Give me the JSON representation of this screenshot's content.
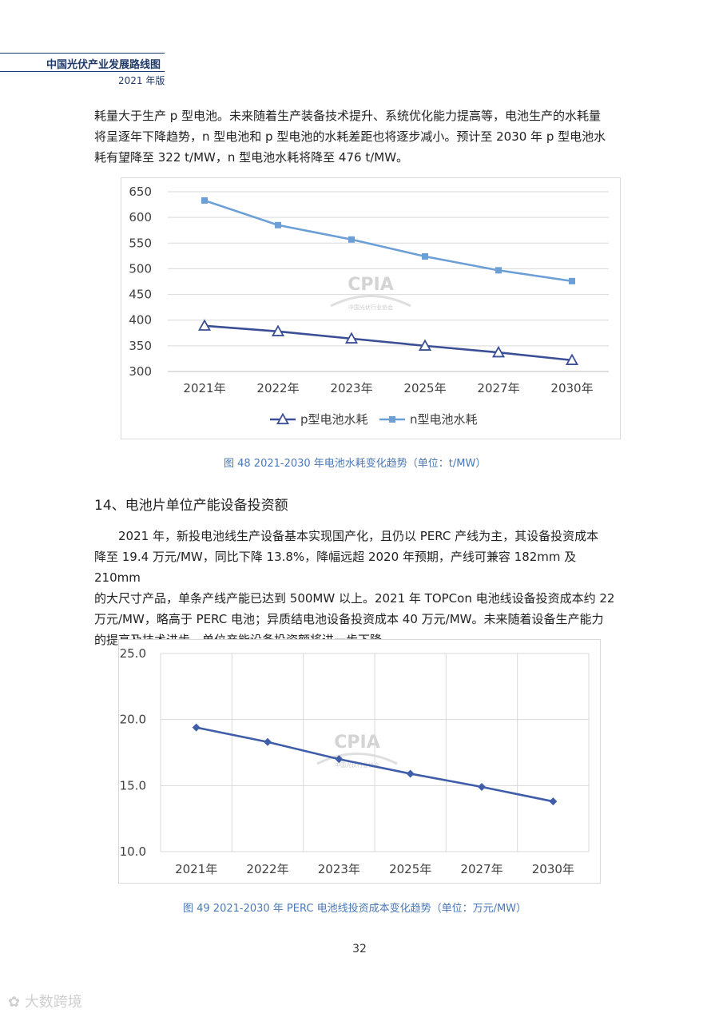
{
  "header": {
    "title": "中国光伏产业发展路线图",
    "subtitle": "2021 年版"
  },
  "paragraph1": [
    "耗量大于生产 p 型电池。未来随着生产装备技术提升、系统优化能力提高等，电池生产的水耗量",
    "将呈逐年下降趋势，n 型电池和 p 型电池的水耗差距也将逐步减小。预计至 2030 年 p 型电池水",
    "耗有望降至 322 t/MW，n 型电池水耗将降至 476 t/MW。"
  ],
  "figure48": {
    "caption": "图 48    2021-2030 年电池水耗变化趋势（单位：t/MW）",
    "watermark_text": "CPIA",
    "watermark_sub": "中国光伏行业协会"
  },
  "section14": {
    "heading": "14、电池片单位产能设备投资额",
    "paragraph": [
      "2021 年，新投电池线生产设备基本实现国产化，且仍以 PERC 产线为主，其设备投资成本",
      "降至 19.4 万元/MW，同比下降 13.8%，降幅远超 2020 年预期，产线可兼容 182mm 及 210mm",
      "的大尺寸产品，单条产线产能已达到 500MW 以上。2021 年 TOPCon 电池线设备投资成本约 22",
      "万元/MW，略高于 PERC 电池；异质结电池设备投资成本 40 万元/MW。未来随着设备生产能力",
      "的提高及技术进步，单位产能设备投资额将进一步下降。"
    ]
  },
  "figure49": {
    "caption": "图 49    2021-2030 年 PERC 电池线投资成本变化趋势（单位：万元/MW）",
    "watermark_text": "CPIA",
    "watermark_sub": "中国光伏行业协会"
  },
  "page_number": "32",
  "corner_logo_text": "大数跨境",
  "chart_data": [
    {
      "type": "line",
      "categories": [
        "2021年",
        "2022年",
        "2023年",
        "2025年",
        "2027年",
        "2030年"
      ],
      "series": [
        {
          "name": "p型电池水耗",
          "values": [
            389,
            378,
            364,
            350,
            337,
            322
          ],
          "color": "#3b4f96",
          "marker": "triangle-open"
        },
        {
          "name": "n型电池水耗",
          "values": [
            633,
            585,
            557,
            524,
            497,
            476
          ],
          "color": "#6c9fd6",
          "marker": "square"
        }
      ],
      "ylim": [
        300,
        650
      ],
      "yticks": [
        "650",
        "600",
        "550",
        "500",
        "450",
        "400",
        "350",
        "300"
      ],
      "ytick_values": [
        650,
        600,
        550,
        500,
        450,
        400,
        350,
        300
      ],
      "grid": "horizontal",
      "legend": "bottom"
    },
    {
      "type": "line",
      "categories": [
        "2021年",
        "2022年",
        "2023年",
        "2025年",
        "2027年",
        "2030年"
      ],
      "series": [
        {
          "values": [
            19.4,
            18.3,
            17.0,
            15.9,
            14.9,
            13.8
          ],
          "color": "#3f5da8",
          "marker": "diamond"
        }
      ],
      "ylim": [
        10,
        25
      ],
      "yticks": [
        "25.0",
        "20.0",
        "15.0",
        "10.0"
      ],
      "ytick_values": [
        25,
        20,
        15,
        10
      ],
      "grid": "both",
      "legend": "none"
    }
  ]
}
